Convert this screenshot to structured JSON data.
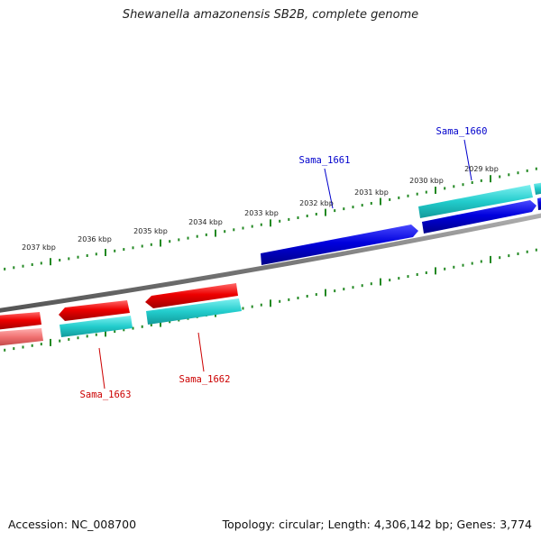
{
  "title": "Shewanella amazonensis SB2B, complete genome",
  "footer": {
    "accession": "Accession: NC_008700",
    "stats": "Topology: circular; Length: 4,306,142 bp; Genes: 3,774"
  },
  "ruler_ticks": [
    {
      "label": "2037 kbp"
    },
    {
      "label": "2036 kbp"
    },
    {
      "label": "2035 kbp"
    },
    {
      "label": "2034 kbp"
    },
    {
      "label": "2033 kbp"
    },
    {
      "label": "2032 kbp"
    },
    {
      "label": "2031 kbp"
    },
    {
      "label": "2030 kbp"
    },
    {
      "label": "2029 kbp"
    }
  ],
  "genes": [
    {
      "name": "Sama_1661",
      "strand": "forward",
      "color": "#0000cc"
    },
    {
      "name": "Sama_1660",
      "strand": "forward",
      "color": "#0000cc"
    },
    {
      "name": "Sama_1662",
      "strand": "reverse",
      "color": "#cc0000"
    },
    {
      "name": "Sama_1663",
      "strand": "reverse",
      "color": "#cc0000"
    }
  ],
  "colors": {
    "forward_cds": "#0000dd",
    "reverse_cds": "#ee0000",
    "feature_track": "#2ad0d0",
    "ruler": "#228822",
    "backbone": "#888888",
    "forward_label": "#0000cc",
    "reverse_label": "#cc0000"
  }
}
